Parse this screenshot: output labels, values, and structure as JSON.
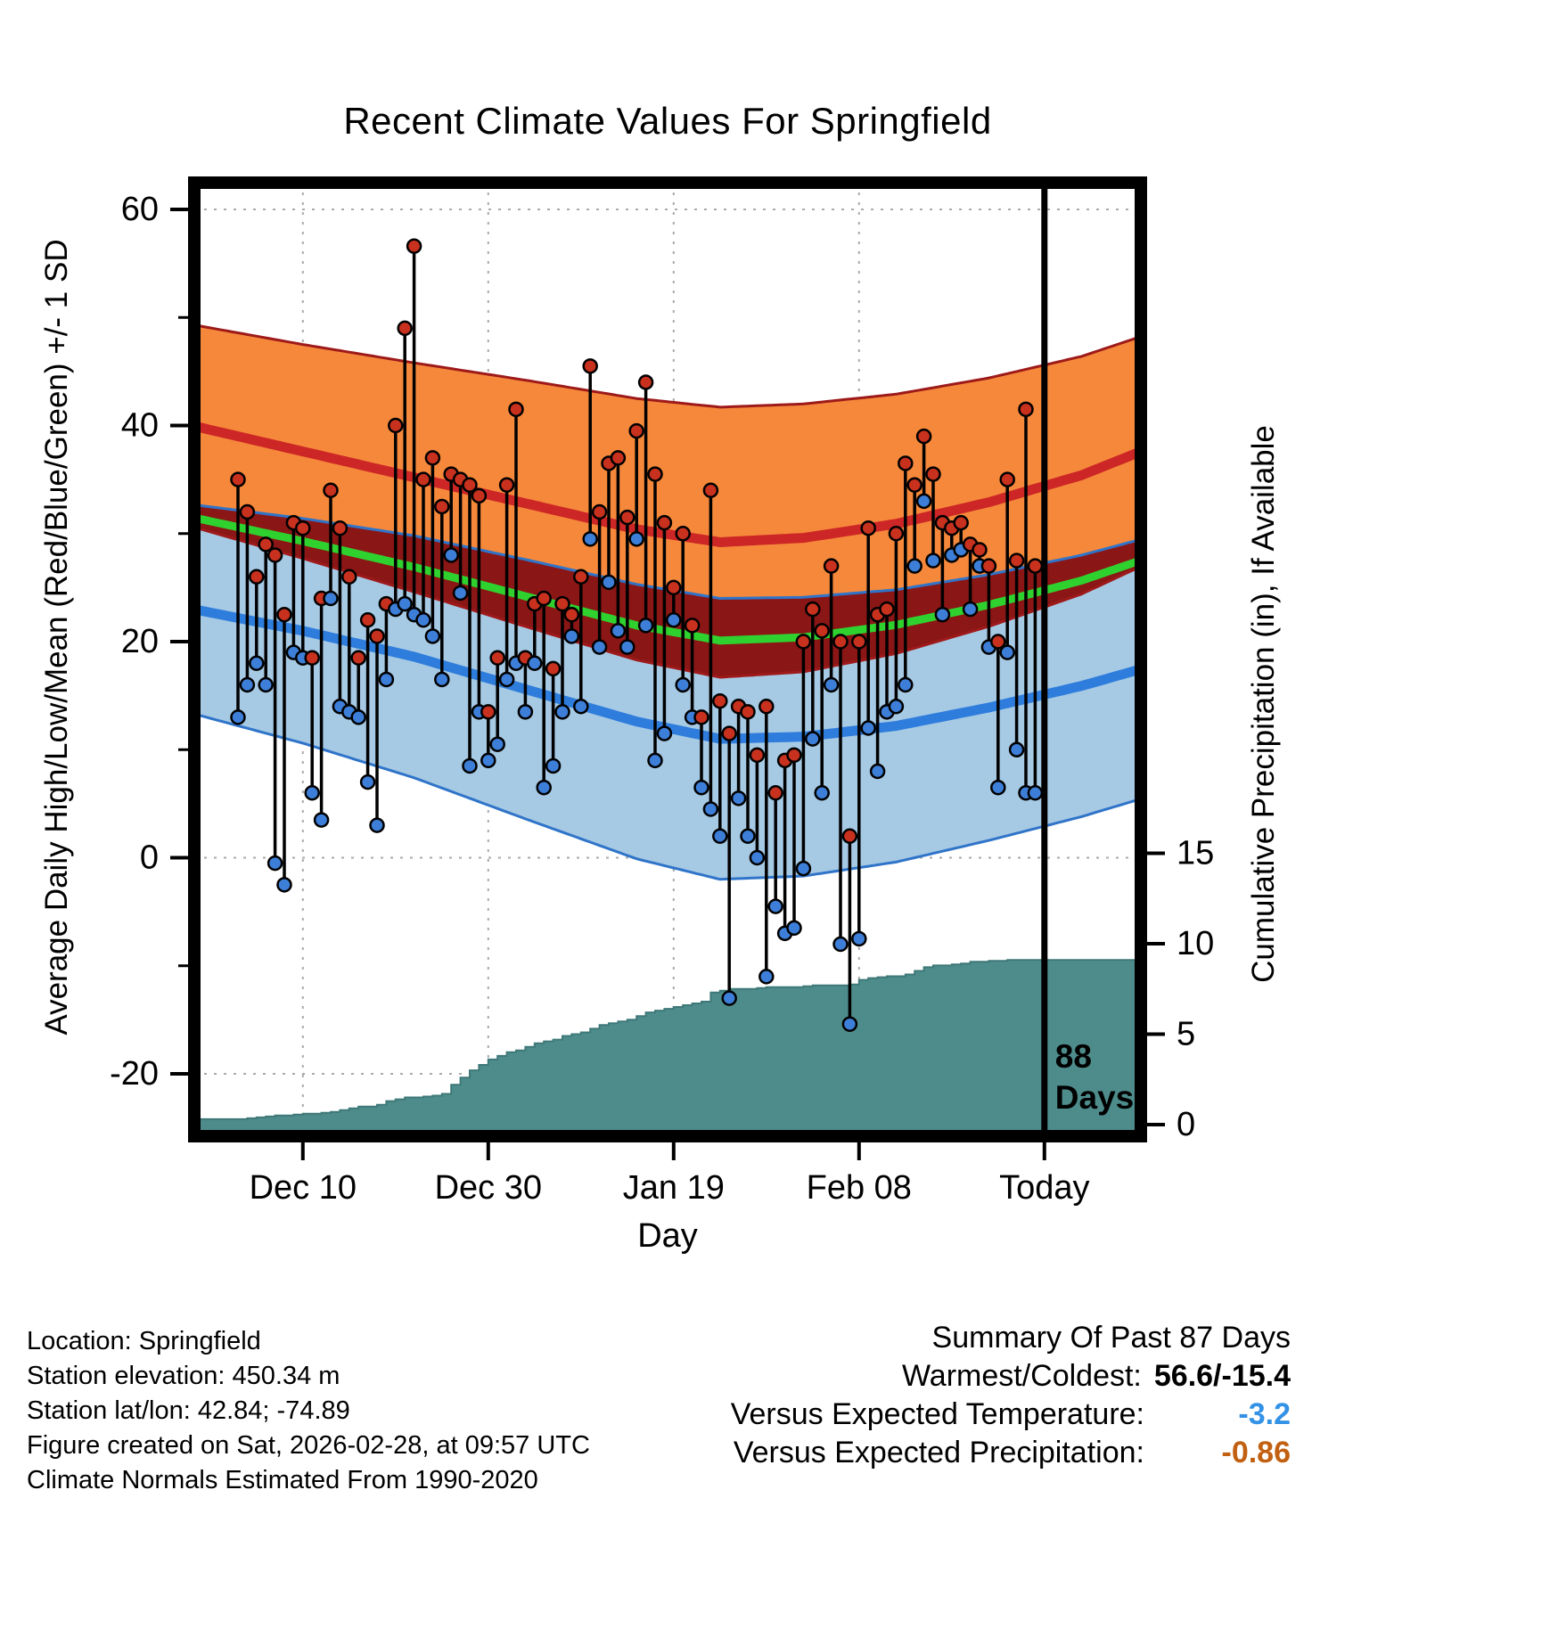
{
  "title": "Recent Climate Values For Springfield",
  "axes": {
    "left_label": "Average Daily High/Low/Mean (Red/Blue/Green) +/- 1 SD",
    "right_label": "Cumulative Precipitation (in), If Available",
    "x_label": "Day",
    "temp_ticks": [
      60,
      40,
      20,
      0,
      -20
    ],
    "temp_minor_ticks": [
      50,
      30,
      10,
      -10
    ],
    "precip_ticks": [
      15,
      10,
      5,
      0
    ],
    "x_ticks": [
      {
        "day": 8,
        "label": "Dec 10"
      },
      {
        "day": 28,
        "label": "Dec 30"
      },
      {
        "day": 48,
        "label": "Jan 19"
      },
      {
        "day": 68,
        "label": "Feb 08"
      },
      {
        "day": 88,
        "label": "Today"
      }
    ]
  },
  "chart_data": {
    "type": "line",
    "title": "Recent Climate Values For Springfield",
    "xlabel": "Day",
    "ylabel": "Average Daily High/Low/Mean (Red/Blue/Green) +/- 1 SD",
    "y2label": "Cumulative Precipitation (in), If Available",
    "ylim_temp": [
      -26,
      62
    ],
    "num_days": 87,
    "daily": {
      "high": [
        35,
        32,
        26,
        29,
        28,
        22.5,
        31,
        30.5,
        18.5,
        24,
        34,
        30.5,
        26,
        18.5,
        22,
        20.5,
        23.5,
        40,
        49,
        56.6,
        35,
        37,
        32.5,
        35.5,
        35,
        34.5,
        33.5,
        13.5,
        18.5,
        34.5,
        41.5,
        18.5,
        23.5,
        24,
        17.5,
        23.5,
        22.5,
        26,
        45.5,
        32,
        36.5,
        37,
        31.5,
        39.5,
        44,
        35.5,
        31,
        25,
        30,
        21.5,
        13,
        34,
        14.5,
        11.5,
        14,
        13.5,
        9.5,
        14,
        6,
        9,
        9.5,
        20,
        23,
        21,
        27,
        20,
        2,
        20,
        30.5,
        22.5,
        23,
        30,
        36.5,
        34.5,
        39,
        35.5,
        31,
        30.5,
        31,
        29,
        28.5,
        27,
        20,
        35,
        27.5,
        41.5,
        27
      ],
      "low": [
        13,
        16,
        18,
        16,
        -0.5,
        -2.5,
        19,
        18.5,
        6,
        3.5,
        24,
        14,
        13.5,
        13,
        7,
        3,
        16.5,
        23,
        23.5,
        22.5,
        22,
        20.5,
        16.5,
        28,
        24.5,
        8.5,
        13.5,
        9,
        10.5,
        16.5,
        18,
        13.5,
        18,
        6.5,
        8.5,
        13.5,
        20.5,
        14,
        29.5,
        19.5,
        25.5,
        21,
        19.5,
        29.5,
        21.5,
        9,
        11.5,
        22,
        16,
        13,
        6.5,
        4.5,
        2,
        -13,
        5.5,
        2,
        0,
        -11,
        -4.5,
        -7,
        -6.5,
        -1,
        11,
        6,
        16,
        -8,
        -15.4,
        -7.5,
        12,
        8,
        13.5,
        14,
        16,
        27,
        33,
        27.5,
        22.5,
        28,
        28.5,
        23,
        27,
        19.5,
        6.5,
        19,
        10,
        6,
        6
      ]
    },
    "cumulative_precip": [
      0.3,
      0.35,
      0.4,
      0.45,
      0.5,
      0.5,
      0.55,
      0.6,
      0.6,
      0.65,
      0.7,
      0.8,
      0.9,
      1.0,
      1.0,
      1.1,
      1.3,
      1.4,
      1.5,
      1.5,
      1.55,
      1.6,
      1.7,
      2.2,
      2.6,
      3.0,
      3.3,
      3.6,
      3.8,
      4.0,
      4.1,
      4.3,
      4.5,
      4.6,
      4.7,
      4.9,
      5.0,
      5.1,
      5.3,
      5.5,
      5.6,
      5.7,
      5.8,
      6.0,
      6.2,
      6.3,
      6.4,
      6.5,
      6.6,
      6.7,
      6.8,
      7.3,
      7.4,
      7.5,
      7.5,
      7.5,
      7.55,
      7.6,
      7.6,
      7.6,
      7.6,
      7.65,
      7.7,
      7.7,
      7.7,
      7.7,
      7.75,
      8.0,
      8.1,
      8.15,
      8.2,
      8.2,
      8.3,
      8.5,
      8.7,
      8.8,
      8.8,
      8.85,
      8.9,
      9.0,
      9.0,
      9.05,
      9.05,
      9.1,
      9.1,
      9.1,
      9.1
    ],
    "normals": {
      "days": [
        -5,
        8,
        20,
        32,
        44,
        53,
        62,
        72,
        82,
        92,
        99
      ],
      "high_mean": [
        40.2,
        37.6,
        35.2,
        32.8,
        30.4,
        29.2,
        29.6,
        30.9,
        32.9,
        35.4,
        37.8
      ],
      "high_sd": [
        9.3,
        9.9,
        10.6,
        11.4,
        12.1,
        12.5,
        12.4,
        12.0,
        11.5,
        11.0,
        10.6
      ],
      "low_mean": [
        23.2,
        21.0,
        18.6,
        15.6,
        12.6,
        11.0,
        11.2,
        12.2,
        13.9,
        15.9,
        17.6
      ],
      "low_sd": [
        9.6,
        10.4,
        11.2,
        12.0,
        12.7,
        13.0,
        12.9,
        12.6,
        12.3,
        12.1,
        12.0
      ]
    },
    "today_marker": {
      "day": 88,
      "label": [
        "88",
        "Days"
      ]
    }
  },
  "colors": {
    "high_band_fill": "#F5883A",
    "high_band_edge": "#9E1A1A",
    "high_mean_line": "#CD2626",
    "overlap_fill": "#8B1616",
    "low_band_fill": "#A6C9E4",
    "low_band_edge": "#2F74C9",
    "low_mean_line": "#2E7DDC",
    "mean_line": "#2FD12F",
    "high_dot": "#C8311E",
    "low_dot": "#3D7FD8",
    "precip_fill": "#4E8C8C",
    "grid": "#AAAAAA",
    "vs_temp_color": "#3392E6",
    "vs_precip_color": "#C26012"
  },
  "station": {
    "location": "Location: Springfield",
    "elevation": "Station elevation: 450.34 m",
    "latlon": "Station lat/lon: 42.84; -74.89",
    "created": "Figure created on Sat, 2026-02-28, at 09:57 UTC",
    "normals_note": "Climate Normals Estimated From 1990-2020"
  },
  "summary": {
    "title": "Summary Of Past 87 Days",
    "warmest_coldest_label": "Warmest/Coldest:",
    "warmest_coldest_value": "56.6/-15.4",
    "vs_temp_label": "Versus Expected Temperature:",
    "vs_temp_value": "-3.2",
    "vs_precip_label": "Versus Expected Precipitation:",
    "vs_precip_value": "-0.86"
  }
}
